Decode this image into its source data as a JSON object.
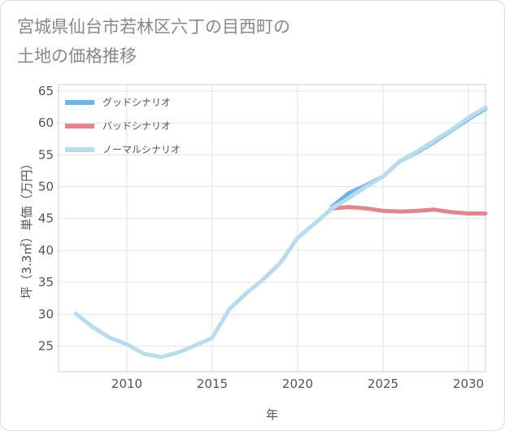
{
  "title": {
    "line1": "宮城県仙台市若林区六丁の目西町の",
    "line2": "土地の価格推移"
  },
  "chart_data": {
    "type": "line",
    "title": "宮城県仙台市若林区六丁の目西町の土地の価格推移",
    "xlabel": "年",
    "ylabel": "坪（3.3㎡）単価（万円）",
    "xlim": [
      2006,
      2031
    ],
    "ylim": [
      21,
      66
    ],
    "xticks": [
      2010,
      2015,
      2020,
      2025,
      2030
    ],
    "yticks": [
      25,
      30,
      35,
      40,
      45,
      50,
      55,
      60,
      65
    ],
    "grid": true,
    "legend_position": "top-left",
    "series": [
      {
        "name": "グッドシナリオ",
        "color": "#6cb6e6",
        "x": [
          2022,
          2023,
          2024,
          2025,
          2026,
          2027,
          2028,
          2029,
          2030,
          2031
        ],
        "values": [
          46.8,
          49.0,
          50.2,
          51.6,
          54.0,
          55.4,
          57.0,
          58.8,
          60.6,
          62.2
        ]
      },
      {
        "name": "バッドシナリオ",
        "color": "#e0868f",
        "x": [
          2022,
          2023,
          2024,
          2025,
          2026,
          2027,
          2028,
          2029,
          2030,
          2031
        ],
        "values": [
          46.6,
          46.8,
          46.6,
          46.2,
          46.1,
          46.2,
          46.4,
          46.0,
          45.8,
          45.8
        ]
      },
      {
        "name": "ノーマルシナリオ",
        "color": "#b9dcec",
        "x": [
          2007,
          2008,
          2009,
          2010,
          2011,
          2012,
          2013,
          2014,
          2015,
          2016,
          2017,
          2018,
          2019,
          2020,
          2021,
          2022,
          2023,
          2024,
          2025,
          2026,
          2027,
          2028,
          2029,
          2030,
          2031
        ],
        "values": [
          30.1,
          28.0,
          26.3,
          25.3,
          23.8,
          23.3,
          24.0,
          25.1,
          26.3,
          30.8,
          33.3,
          35.5,
          38.1,
          42.0,
          44.2,
          46.6,
          48.2,
          50.0,
          51.6,
          54.0,
          55.5,
          57.2,
          58.9,
          60.8,
          62.4
        ]
      }
    ]
  }
}
